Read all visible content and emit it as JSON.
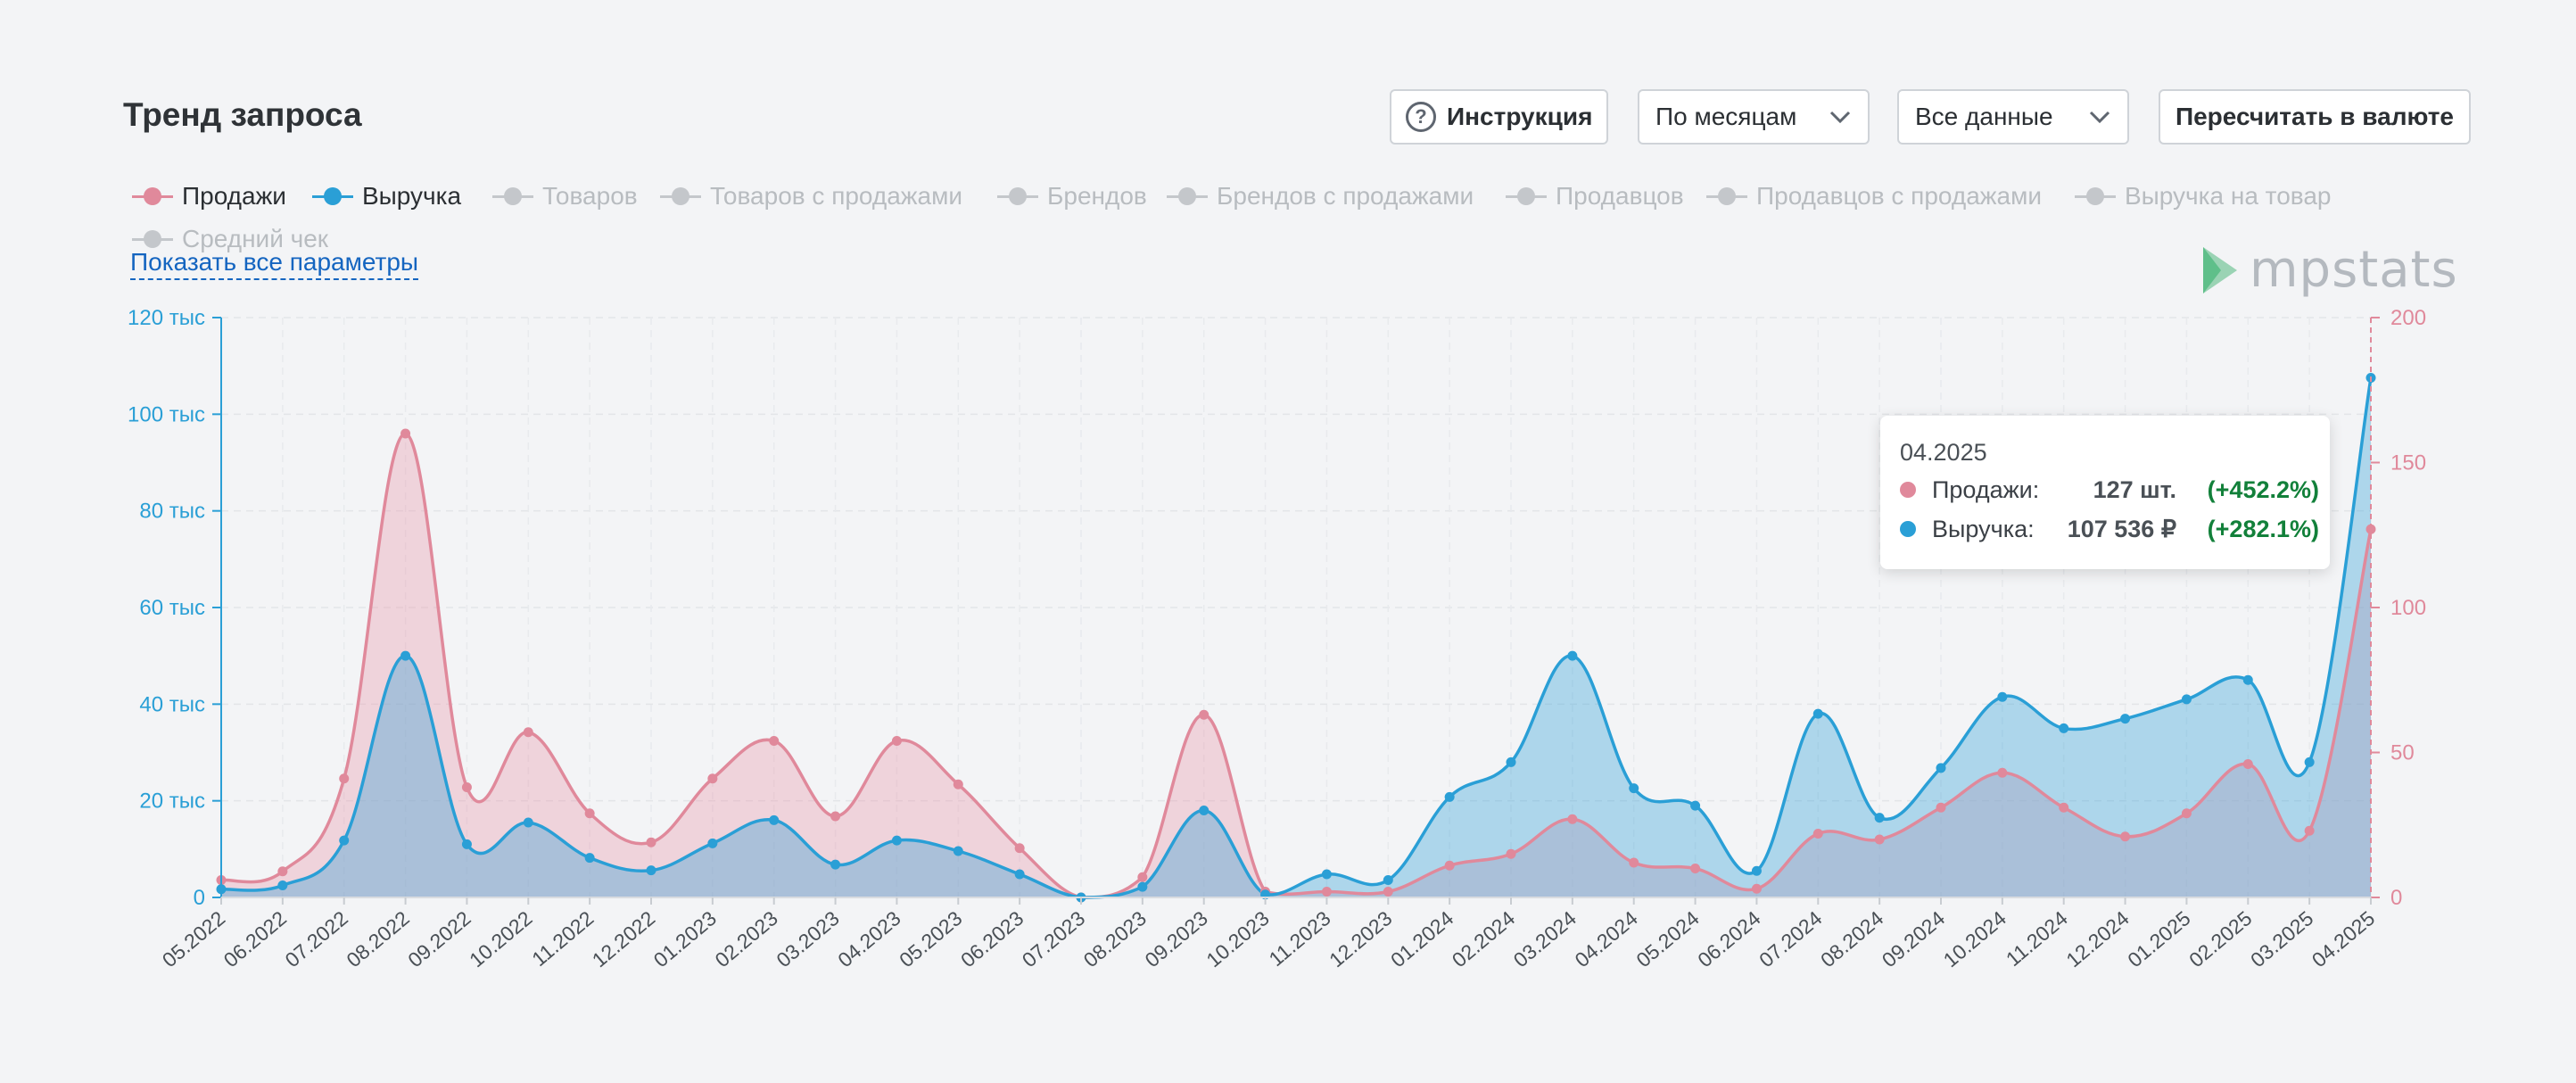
{
  "header": {
    "title": "Тренд запроса",
    "instruction_label": "Инструкция",
    "period_select": "По месяцам",
    "data_select": "Все данные",
    "recalc_label": "Пересчитать в валюте"
  },
  "legend": {
    "items": [
      {
        "label": "Продажи",
        "active": true,
        "color": "#e0899b"
      },
      {
        "label": "Выручка",
        "active": true,
        "color": "#2a9fd6"
      },
      {
        "label": "Товаров",
        "active": false,
        "color": "#c4c7cb"
      },
      {
        "label": "Товаров с продажами",
        "active": false,
        "color": "#c4c7cb"
      },
      {
        "label": "Брендов",
        "active": false,
        "color": "#c4c7cb"
      },
      {
        "label": "Брендов с продажами",
        "active": false,
        "color": "#c4c7cb"
      },
      {
        "label": "Продавцов",
        "active": false,
        "color": "#c4c7cb"
      },
      {
        "label": "Продавцов с продажами",
        "active": false,
        "color": "#c4c7cb"
      },
      {
        "label": "Выручка на товар",
        "active": false,
        "color": "#c4c7cb"
      },
      {
        "label": "Средний чек",
        "active": false,
        "color": "#c4c7cb"
      }
    ],
    "show_all_label": "Показать все параметры"
  },
  "logo": {
    "text": "mpstats"
  },
  "tooltip": {
    "date": "04.2025",
    "rows": [
      {
        "label": "Продажи:",
        "value": "127 шт.",
        "change": "(+452.2%)",
        "color": "#e0899b"
      },
      {
        "label": "Выручка:",
        "value": "107 536 ₽",
        "change": "(+282.1%)",
        "color": "#2a9fd6"
      }
    ]
  },
  "chart_data": {
    "type": "area",
    "categories": [
      "05.2022",
      "06.2022",
      "07.2022",
      "08.2022",
      "09.2022",
      "10.2022",
      "11.2022",
      "12.2022",
      "01.2023",
      "02.2023",
      "03.2023",
      "04.2023",
      "05.2023",
      "06.2023",
      "07.2023",
      "08.2023",
      "09.2023",
      "10.2023",
      "11.2023",
      "12.2023",
      "01.2024",
      "02.2024",
      "03.2024",
      "04.2024",
      "05.2024",
      "06.2024",
      "07.2024",
      "08.2024",
      "09.2024",
      "10.2024",
      "11.2024",
      "12.2024",
      "01.2025",
      "02.2025",
      "03.2025",
      "04.2025"
    ],
    "left_axis": {
      "ticks": [
        "0",
        "20 тыс",
        "40 тыс",
        "60 тыс",
        "80 тыс",
        "100 тыс",
        "120 тыс"
      ],
      "ylim": [
        0,
        120000
      ],
      "color": "#2a9fd6"
    },
    "right_axis": {
      "ticks": [
        "0",
        "50",
        "100",
        "150",
        "200"
      ],
      "ylim": [
        0,
        200
      ],
      "color": "#e0899b"
    },
    "grid": true,
    "series": [
      {
        "name": "Продажи",
        "axis": "right",
        "color": "#e0899b",
        "values": [
          6,
          9,
          41,
          160,
          38,
          57,
          29,
          19,
          41,
          54,
          28,
          54,
          39,
          17,
          0,
          7,
          63,
          2,
          2,
          2,
          11,
          15,
          27,
          12,
          10,
          3,
          22,
          20,
          31,
          43,
          31,
          21,
          29,
          46,
          23,
          127
        ]
      },
      {
        "name": "Выручка",
        "axis": "left",
        "color": "#2a9fd6",
        "values": [
          1700,
          2500,
          11800,
          50000,
          11000,
          15500,
          8200,
          5600,
          11200,
          16000,
          6800,
          11800,
          9600,
          4800,
          0,
          2200,
          18000,
          600,
          4800,
          3600,
          20800,
          28000,
          50000,
          22600,
          19000,
          5500,
          38000,
          16500,
          26800,
          41500,
          35000,
          37000,
          41000,
          45000,
          28000,
          107536
        ]
      }
    ]
  }
}
